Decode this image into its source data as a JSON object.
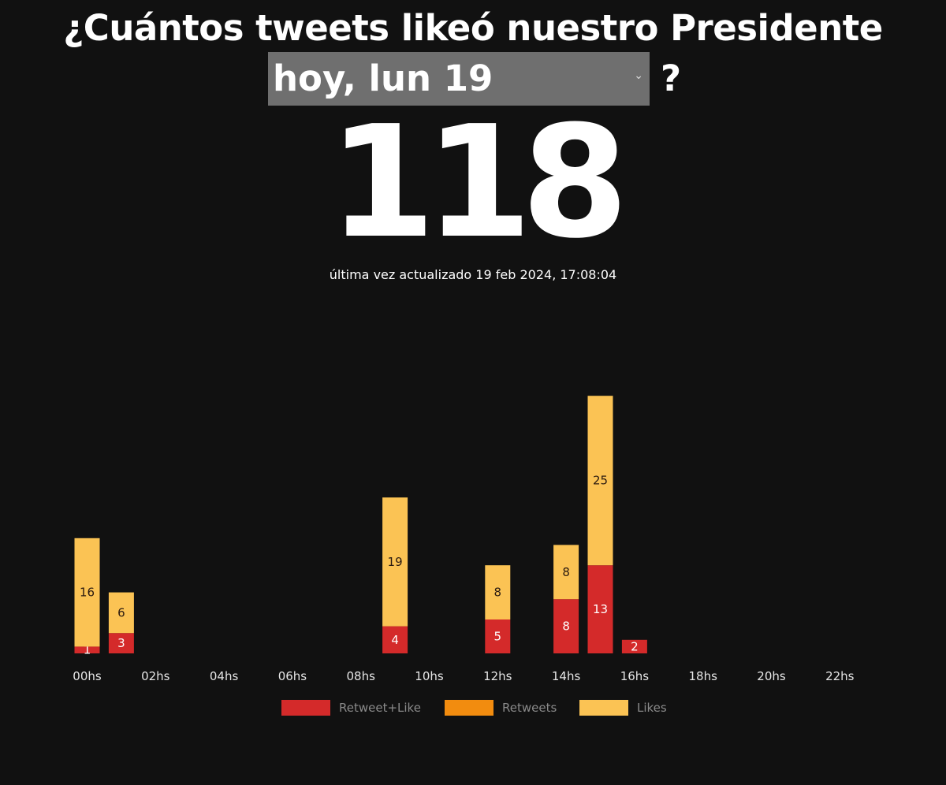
{
  "header": {
    "title": "¿Cuántos tweets likeó nuestro Presidente",
    "question_mark": "?"
  },
  "date_select": {
    "value": "hoy, lun 19",
    "chevron_icon": "chevron-down-icon"
  },
  "total_count": "118",
  "last_updated": "última vez actualizado 19 feb 2024, 17:08:04",
  "colors": {
    "background": "#111111",
    "retweet_like": "#d42a2a",
    "retweets": "#f28c0f",
    "likes": "#fbc354"
  },
  "chart_data": {
    "type": "bar",
    "stacked": true,
    "x_ticks": [
      "00hs",
      "02hs",
      "04hs",
      "06hs",
      "08hs",
      "10hs",
      "12hs",
      "14hs",
      "16hs",
      "18hs",
      "20hs",
      "22hs"
    ],
    "hours": [
      0,
      1,
      9,
      12,
      14,
      15,
      16
    ],
    "series": [
      {
        "name": "Retweet+Like",
        "color": "#d42a2a",
        "values": [
          1,
          3,
          4,
          5,
          8,
          13,
          2
        ]
      },
      {
        "name": "Retweets",
        "color": "#f28c0f",
        "values": [
          0,
          0,
          0,
          0,
          0,
          0,
          0
        ]
      },
      {
        "name": "Likes",
        "color": "#fbc354",
        "values": [
          16,
          6,
          19,
          8,
          8,
          25,
          0
        ]
      }
    ],
    "legend_position": "bottom",
    "grid": false
  }
}
